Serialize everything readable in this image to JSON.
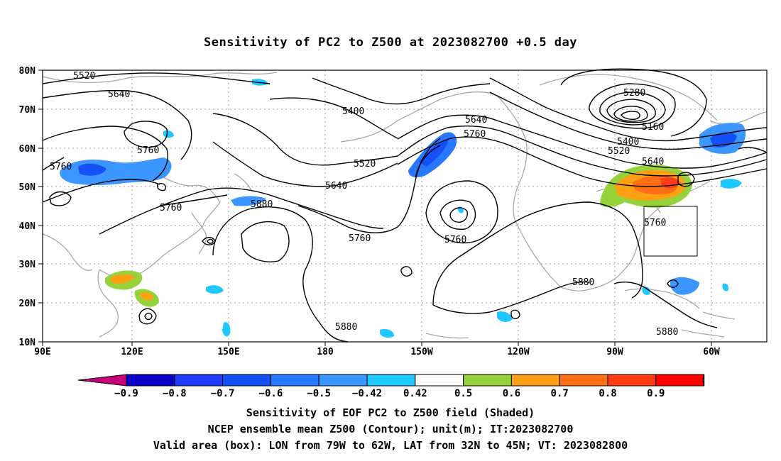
{
  "title": "Sensitivity of PC2 to Z500 at 2023082700 +0.5 day",
  "captions": {
    "line1": "Sensitivity of EOF PC2 to Z500 field (Shaded)",
    "line2": "NCEP ensemble mean Z500 (Contour); unit(m); IT:2023082700",
    "line3": "Valid area (box): LON from 79W to 62W, LAT from 32N to 45N; VT: 2023082800"
  },
  "axes": {
    "lat_ticks": [
      "80N",
      "70N",
      "60N",
      "50N",
      "40N",
      "30N",
      "20N",
      "10N"
    ],
    "lon_ticks": [
      "90E",
      "120E",
      "150E",
      "180",
      "150W",
      "120W",
      "90W",
      "60W"
    ]
  },
  "contour_labels": [
    "5520",
    "5640",
    "5760",
    "5760",
    "5760",
    "5880",
    "5400",
    "5520",
    "5640",
    "5760",
    "5640",
    "5760",
    "5760",
    "5280",
    "5160",
    "5400",
    "5520",
    "5640",
    "5760",
    "5880",
    "5880",
    "5880"
  ],
  "colorbar": {
    "labels": [
      "-0.9",
      "-0.8",
      "-0.7",
      "-0.6",
      "-0.5",
      "-0.42",
      "0.42",
      "0.5",
      "0.6",
      "0.7",
      "0.8",
      "0.9"
    ],
    "colors": [
      "#0a00c8",
      "#1e3cff",
      "#1450f5",
      "#2878ff",
      "#3c96ff",
      "#1ec8ff",
      "#ffffff",
      "#96d23c",
      "#ffa014",
      "#ff6e14",
      "#ff3c14",
      "#ff0000"
    ],
    "end_low": "#c8007a",
    "end_high": "#f5a0c8"
  },
  "colors": {
    "coast": "#a8a8a8",
    "grid": "#9a9a9a",
    "contour": "#000000"
  },
  "valid_box": {
    "lon_w": "79W",
    "lon_e": "62W",
    "lat_s": "32N",
    "lat_n": "45N"
  }
}
